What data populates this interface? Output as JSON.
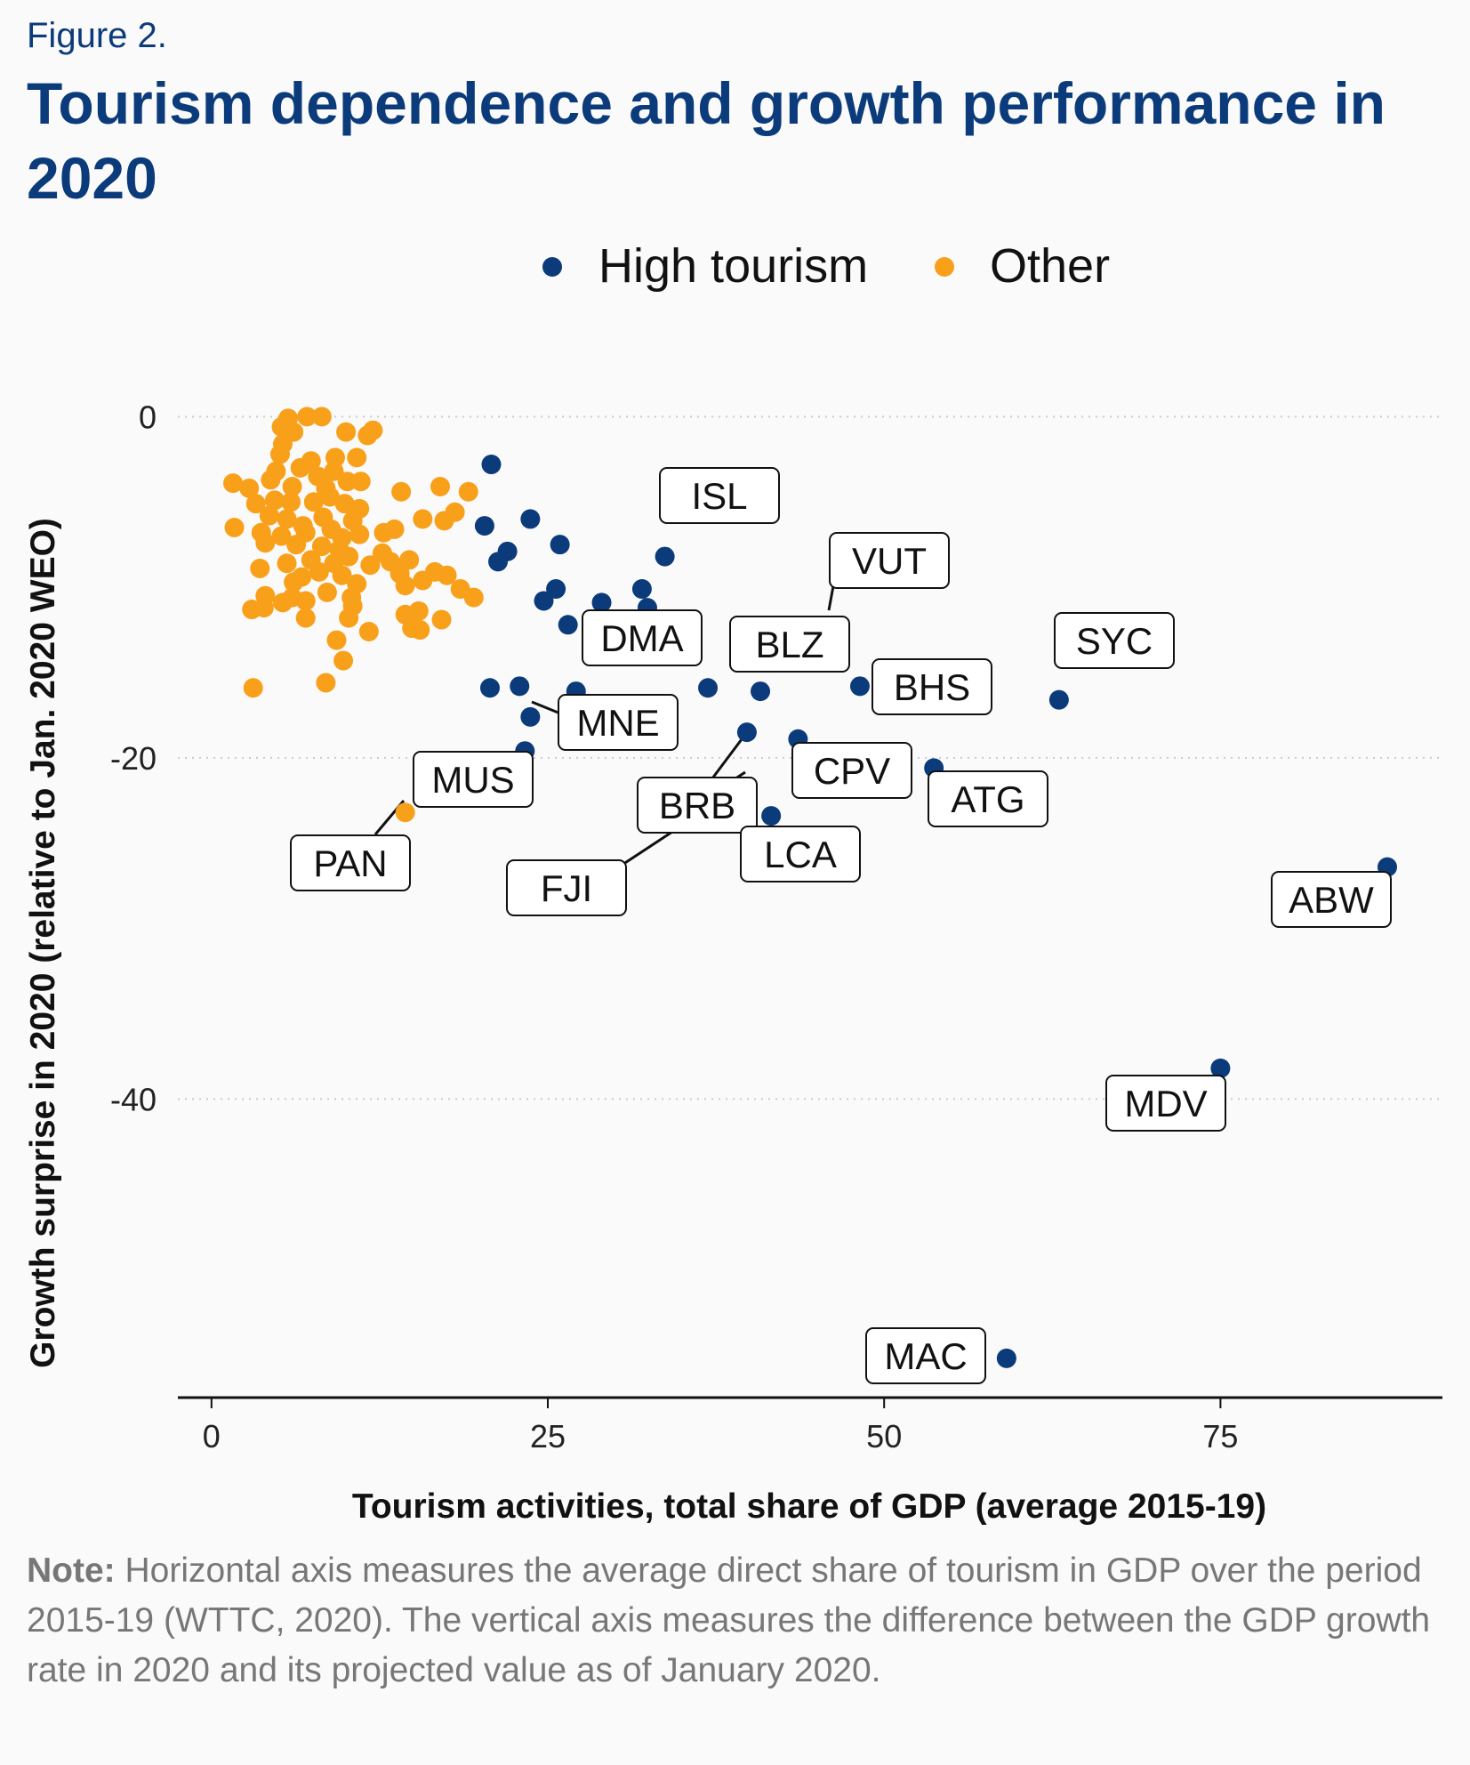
{
  "figure_label": "Figure 2.",
  "title": "Tourism dependence and growth performance in 2020",
  "note": {
    "label": "Note:",
    "text": " Horizontal axis measures the average direct share of tourism in GDP over the period 2015-19 (WTTC, 2020). The vertical axis measures the difference between the GDP growth rate in 2020 and its projected value as of January 2020."
  },
  "colors": {
    "high_tourism": "#0b3b7a",
    "other": "#f9a01b",
    "title": "#0b3b7a",
    "note": "#777777"
  },
  "chart_data": {
    "type": "scatter",
    "xlabel": "Tourism activities, total share of GDP (average 2015-19)",
    "ylabel": "Growth surprise in 2020 (relative to Jan. 2020 WEO)",
    "xlim": [
      -2.5,
      91.5
    ],
    "ylim": [
      -57.5,
      2.0
    ],
    "xticks": [
      0,
      25,
      50,
      75
    ],
    "yticks": [
      0,
      -20,
      -40
    ],
    "grid": "horizontal dotted",
    "legend_position": "top",
    "series": [
      {
        "name": "High tourism",
        "color": "#0b3b7a",
        "points": [
          {
            "x": 20.8,
            "y": -2.8
          },
          {
            "x": 20.3,
            "y": -6.4
          },
          {
            "x": 23.7,
            "y": -6.0
          },
          {
            "x": 22.0,
            "y": -7.9
          },
          {
            "x": 21.3,
            "y": -8.5
          },
          {
            "x": 25.9,
            "y": -7.5
          },
          {
            "x": 33.7,
            "y": -8.2,
            "label": "ISL"
          },
          {
            "x": 25.6,
            "y": -10.1
          },
          {
            "x": 24.7,
            "y": -10.8
          },
          {
            "x": 29.0,
            "y": -10.9
          },
          {
            "x": 32.0,
            "y": -10.1
          },
          {
            "x": 32.4,
            "y": -11.2
          },
          {
            "x": 26.5,
            "y": -12.2
          },
          {
            "x": 45.9,
            "y": -12.3,
            "label": "VUT"
          },
          {
            "x": 20.7,
            "y": -15.9
          },
          {
            "x": 22.9,
            "y": -15.8
          },
          {
            "x": 27.1,
            "y": -16.1
          },
          {
            "x": 36.9,
            "y": -15.9,
            "label": "DMA"
          },
          {
            "x": 40.8,
            "y": -16.1,
            "label": "BLZ"
          },
          {
            "x": 48.2,
            "y": -15.8,
            "label": "BHS"
          },
          {
            "x": 63.0,
            "y": -16.6,
            "label": "SYC"
          },
          {
            "x": 23.7,
            "y": -17.6,
            "label": "MNE"
          },
          {
            "x": 23.3,
            "y": -19.6
          },
          {
            "x": 39.8,
            "y": -18.5,
            "label": "FJI"
          },
          {
            "x": 43.6,
            "y": -18.9
          },
          {
            "x": 53.7,
            "y": -20.6,
            "label": "ATG"
          },
          {
            "x": 39.3,
            "y": -21.8,
            "label": "BRB"
          },
          {
            "x": 41.6,
            "y": -23.4,
            "label": "LCA"
          },
          {
            "x": 87.4,
            "y": -26.4,
            "label": "ABW"
          },
          {
            "x": 75.0,
            "y": -38.2,
            "label": "MDV"
          },
          {
            "x": 59.1,
            "y": -55.2,
            "label": "MAC"
          }
        ]
      },
      {
        "name": "Other",
        "color": "#f9a01b",
        "points": [
          {
            "x": 14.4,
            "y": -23.2,
            "label": "PAN"
          },
          {
            "x": 5.7,
            "y": -0.1
          },
          {
            "x": 8.2,
            "y": 0.0
          },
          {
            "x": 7.1,
            "y": 0.0
          },
          {
            "x": 5.2,
            "y": -0.6
          },
          {
            "x": 6.1,
            "y": -0.9
          },
          {
            "x": 10.0,
            "y": -0.9
          },
          {
            "x": 12.0,
            "y": -0.8
          },
          {
            "x": 11.6,
            "y": -1.1
          },
          {
            "x": 5.3,
            "y": -1.6
          },
          {
            "x": 5.1,
            "y": -2.2
          },
          {
            "x": 7.4,
            "y": -2.6
          },
          {
            "x": 9.2,
            "y": -2.4
          },
          {
            "x": 10.8,
            "y": -2.4
          },
          {
            "x": 4.8,
            "y": -3.2
          },
          {
            "x": 6.6,
            "y": -3.0
          },
          {
            "x": 7.9,
            "y": -3.5
          },
          {
            "x": 9.1,
            "y": -3.2
          },
          {
            "x": 1.6,
            "y": -3.9
          },
          {
            "x": 2.8,
            "y": -4.2
          },
          {
            "x": 4.4,
            "y": -3.7
          },
          {
            "x": 6.0,
            "y": -4.1
          },
          {
            "x": 8.5,
            "y": -4.2
          },
          {
            "x": 10.1,
            "y": -3.8
          },
          {
            "x": 11.1,
            "y": -3.8
          },
          {
            "x": 14.1,
            "y": -4.4
          },
          {
            "x": 17.0,
            "y": -4.1
          },
          {
            "x": 19.1,
            "y": -4.4
          },
          {
            "x": 3.3,
            "y": -5.1
          },
          {
            "x": 4.7,
            "y": -4.9
          },
          {
            "x": 5.9,
            "y": -5.0
          },
          {
            "x": 7.6,
            "y": -5.0
          },
          {
            "x": 8.8,
            "y": -4.7
          },
          {
            "x": 9.9,
            "y": -5.1
          },
          {
            "x": 11.0,
            "y": -5.4
          },
          {
            "x": 4.3,
            "y": -5.8
          },
          {
            "x": 5.6,
            "y": -6.0
          },
          {
            "x": 6.8,
            "y": -6.4
          },
          {
            "x": 8.3,
            "y": -5.9
          },
          {
            "x": 10.5,
            "y": -6.1
          },
          {
            "x": 15.7,
            "y": -6.0
          },
          {
            "x": 17.3,
            "y": -6.1
          },
          {
            "x": 18.1,
            "y": -5.6
          },
          {
            "x": 1.7,
            "y": -6.5
          },
          {
            "x": 3.7,
            "y": -6.8
          },
          {
            "x": 5.2,
            "y": -7.0
          },
          {
            "x": 7.0,
            "y": -6.8
          },
          {
            "x": 8.9,
            "y": -6.6
          },
          {
            "x": 9.7,
            "y": -7.1
          },
          {
            "x": 11.0,
            "y": -6.9
          },
          {
            "x": 12.8,
            "y": -6.8
          },
          {
            "x": 13.6,
            "y": -6.6
          },
          {
            "x": 4.0,
            "y": -7.4
          },
          {
            "x": 6.3,
            "y": -7.5
          },
          {
            "x": 8.2,
            "y": -7.6
          },
          {
            "x": 9.5,
            "y": -7.8
          },
          {
            "x": 10.2,
            "y": -8.2
          },
          {
            "x": 12.7,
            "y": -8.0
          },
          {
            "x": 14.7,
            "y": -8.4
          },
          {
            "x": 3.6,
            "y": -8.9
          },
          {
            "x": 5.6,
            "y": -8.6
          },
          {
            "x": 7.4,
            "y": -8.4
          },
          {
            "x": 9.1,
            "y": -8.6
          },
          {
            "x": 11.8,
            "y": -8.7
          },
          {
            "x": 13.3,
            "y": -8.5
          },
          {
            "x": 6.7,
            "y": -9.4
          },
          {
            "x": 8.0,
            "y": -9.1
          },
          {
            "x": 9.7,
            "y": -9.3
          },
          {
            "x": 14.0,
            "y": -9.2
          },
          {
            "x": 15.7,
            "y": -9.6
          },
          {
            "x": 16.6,
            "y": -9.1
          },
          {
            "x": 17.5,
            "y": -9.3
          },
          {
            "x": 6.1,
            "y": -9.7
          },
          {
            "x": 10.8,
            "y": -9.8
          },
          {
            "x": 14.4,
            "y": -9.9
          },
          {
            "x": 4.0,
            "y": -10.5
          },
          {
            "x": 6.0,
            "y": -10.6
          },
          {
            "x": 8.6,
            "y": -10.3
          },
          {
            "x": 10.4,
            "y": -10.6
          },
          {
            "x": 18.5,
            "y": -10.1
          },
          {
            "x": 19.5,
            "y": -10.6
          },
          {
            "x": 3.0,
            "y": -11.3
          },
          {
            "x": 3.9,
            "y": -11.2
          },
          {
            "x": 5.3,
            "y": -10.9
          },
          {
            "x": 7.0,
            "y": -10.8
          },
          {
            "x": 10.5,
            "y": -11.1
          },
          {
            "x": 14.4,
            "y": -11.6
          },
          {
            "x": 15.4,
            "y": -11.4
          },
          {
            "x": 7.0,
            "y": -11.8
          },
          {
            "x": 10.2,
            "y": -11.8
          },
          {
            "x": 17.1,
            "y": -11.9
          },
          {
            "x": 14.9,
            "y": -12.4
          },
          {
            "x": 15.5,
            "y": -12.5
          },
          {
            "x": 11.7,
            "y": -12.6
          },
          {
            "x": 9.3,
            "y": -13.1
          },
          {
            "x": 9.8,
            "y": -14.3
          },
          {
            "x": 8.5,
            "y": -15.6
          },
          {
            "x": 3.1,
            "y": -15.9
          }
        ]
      }
    ],
    "annotations": [
      {
        "text": "ISL",
        "for": "ISL"
      },
      {
        "text": "VUT",
        "for": "VUT"
      },
      {
        "text": "SYC",
        "for": "SYC"
      },
      {
        "text": "DMA",
        "for": "DMA"
      },
      {
        "text": "BLZ",
        "for": "BLZ"
      },
      {
        "text": "BHS",
        "for": "BHS"
      },
      {
        "text": "MNE",
        "for": "MNE"
      },
      {
        "text": "CPV",
        "for": "CPV"
      },
      {
        "text": "ATG",
        "for": "ATG"
      },
      {
        "text": "MUS",
        "for": "MUS"
      },
      {
        "text": "BRB",
        "for": "BRB"
      },
      {
        "text": "PAN",
        "for": "PAN"
      },
      {
        "text": "LCA",
        "for": "LCA"
      },
      {
        "text": "FJI",
        "for": "FJI"
      },
      {
        "text": "ABW",
        "for": "ABW"
      },
      {
        "text": "MDV",
        "for": "MDV"
      },
      {
        "text": "MAC",
        "for": "MAC"
      }
    ]
  }
}
